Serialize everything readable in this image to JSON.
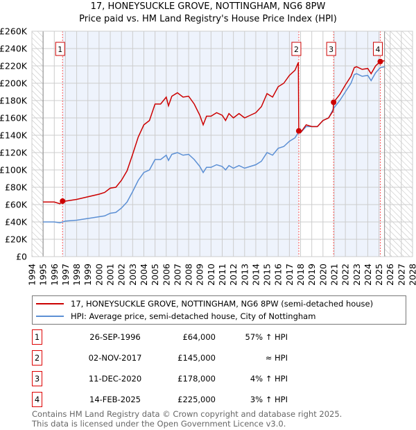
{
  "chart_data": {
    "type": "line",
    "title": "17, HONEYSUCKLE GROVE, NOTTINGHAM, NG6 8PW",
    "subtitle": "Price paid vs. HM Land Registry's House Price Index (HPI)",
    "xlim": [
      1994,
      2028
    ],
    "ylim": [
      0,
      260000
    ],
    "x_ticks": [
      "1994",
      "1995",
      "1996",
      "1997",
      "1998",
      "1999",
      "2000",
      "2001",
      "2002",
      "2003",
      "2004",
      "2005",
      "2006",
      "2007",
      "2008",
      "2009",
      "2010",
      "2011",
      "2012",
      "2013",
      "2014",
      "2015",
      "2016",
      "2017",
      "2018",
      "2019",
      "2020",
      "2021",
      "2022",
      "2023",
      "2024",
      "2025",
      "2026",
      "2027",
      "2028"
    ],
    "y_ticks": [
      {
        "v": 0,
        "label": "£0"
      },
      {
        "v": 20000,
        "label": "£20K"
      },
      {
        "v": 40000,
        "label": "£40K"
      },
      {
        "v": 60000,
        "label": "£60K"
      },
      {
        "v": 80000,
        "label": "£80K"
      },
      {
        "v": 100000,
        "label": "£100K"
      },
      {
        "v": 120000,
        "label": "£120K"
      },
      {
        "v": 140000,
        "label": "£140K"
      },
      {
        "v": 160000,
        "label": "£160K"
      },
      {
        "v": 180000,
        "label": "£180K"
      },
      {
        "v": 200000,
        "label": "£200K"
      },
      {
        "v": 220000,
        "label": "£220K"
      },
      {
        "v": 240000,
        "label": "£240K"
      },
      {
        "v": 260000,
        "label": "£260K"
      }
    ],
    "grid": true,
    "data_range": [
      1995,
      2025.5
    ],
    "series": [
      {
        "name": "17, HONEYSUCKLE GROVE, NOTTINGHAM, NG6 8PW (semi-detached house)",
        "color": "#cc0000",
        "points": [
          [
            1995,
            63
          ],
          [
            1996,
            63
          ],
          [
            1996.5,
            61
          ],
          [
            1996.74,
            64
          ],
          [
            1997,
            64
          ],
          [
            1998,
            66
          ],
          [
            1999,
            69
          ],
          [
            2000,
            72
          ],
          [
            2000.5,
            74
          ],
          [
            2001,
            79
          ],
          [
            2001.5,
            80
          ],
          [
            2002,
            88
          ],
          [
            2002.5,
            99
          ],
          [
            2003,
            118
          ],
          [
            2003.5,
            138
          ],
          [
            2004,
            152
          ],
          [
            2004.5,
            157
          ],
          [
            2005,
            176
          ],
          [
            2005.5,
            176
          ],
          [
            2006,
            184
          ],
          [
            2006.2,
            174
          ],
          [
            2006.5,
            185
          ],
          [
            2007,
            189
          ],
          [
            2007.5,
            184
          ],
          [
            2008,
            185
          ],
          [
            2008.5,
            176
          ],
          [
            2009,
            163
          ],
          [
            2009.3,
            152
          ],
          [
            2009.6,
            162
          ],
          [
            2010,
            162
          ],
          [
            2010.5,
            166
          ],
          [
            2011,
            163
          ],
          [
            2011.3,
            157
          ],
          [
            2011.6,
            165
          ],
          [
            2012,
            160
          ],
          [
            2012.5,
            165
          ],
          [
            2013,
            160
          ],
          [
            2013.5,
            163
          ],
          [
            2014,
            166
          ],
          [
            2014.5,
            173
          ],
          [
            2015,
            188
          ],
          [
            2015.5,
            184
          ],
          [
            2016,
            196
          ],
          [
            2016.5,
            200
          ],
          [
            2017,
            209
          ],
          [
            2017.5,
            215
          ],
          [
            2017.8,
            224
          ],
          [
            2017.84,
            145
          ],
          [
            2018,
            143
          ],
          [
            2018.5,
            152
          ],
          [
            2019,
            150
          ],
          [
            2019.5,
            150
          ],
          [
            2020,
            157
          ],
          [
            2020.5,
            160
          ],
          [
            2020.9,
            168
          ],
          [
            2020.95,
            178
          ],
          [
            2021.5,
            187
          ],
          [
            2022,
            198
          ],
          [
            2022.5,
            208
          ],
          [
            2022.8,
            218
          ],
          [
            2023,
            219
          ],
          [
            2023.5,
            216
          ],
          [
            2024,
            217
          ],
          [
            2024.3,
            211
          ],
          [
            2024.7,
            220
          ],
          [
            2025.12,
            225
          ],
          [
            2025.5,
            226
          ]
        ]
      },
      {
        "name": "HPI: Average price, semi-detached house, City of Nottingham",
        "color": "#5b8fd4",
        "points": [
          [
            1995,
            40
          ],
          [
            1996,
            40
          ],
          [
            1996.5,
            39
          ],
          [
            1997,
            41
          ],
          [
            1998,
            42
          ],
          [
            1999,
            44
          ],
          [
            2000,
            46
          ],
          [
            2000.5,
            47
          ],
          [
            2001,
            50
          ],
          [
            2001.5,
            51
          ],
          [
            2002,
            56
          ],
          [
            2002.5,
            63
          ],
          [
            2003,
            75
          ],
          [
            2003.5,
            88
          ],
          [
            2004,
            97
          ],
          [
            2004.5,
            100
          ],
          [
            2005,
            112
          ],
          [
            2005.5,
            112
          ],
          [
            2006,
            117
          ],
          [
            2006.2,
            111
          ],
          [
            2006.5,
            118
          ],
          [
            2007,
            120
          ],
          [
            2007.5,
            117
          ],
          [
            2008,
            118
          ],
          [
            2008.5,
            112
          ],
          [
            2009,
            104
          ],
          [
            2009.3,
            97
          ],
          [
            2009.6,
            103
          ],
          [
            2010,
            103
          ],
          [
            2010.5,
            106
          ],
          [
            2011,
            104
          ],
          [
            2011.3,
            100
          ],
          [
            2011.6,
            105
          ],
          [
            2012,
            102
          ],
          [
            2012.5,
            105
          ],
          [
            2013,
            102
          ],
          [
            2013.5,
            104
          ],
          [
            2014,
            106
          ],
          [
            2014.5,
            110
          ],
          [
            2015,
            120
          ],
          [
            2015.5,
            117
          ],
          [
            2016,
            125
          ],
          [
            2016.5,
            127
          ],
          [
            2017,
            133
          ],
          [
            2017.5,
            137
          ],
          [
            2017.84,
            144
          ],
          [
            2018,
            143
          ],
          [
            2018.5,
            150
          ],
          [
            2019,
            150
          ],
          [
            2019.5,
            150
          ],
          [
            2020,
            157
          ],
          [
            2020.5,
            160
          ],
          [
            2020.95,
            171
          ],
          [
            2021.5,
            180
          ],
          [
            2022,
            190
          ],
          [
            2022.5,
            200
          ],
          [
            2022.8,
            210
          ],
          [
            2023,
            211
          ],
          [
            2023.5,
            208
          ],
          [
            2024,
            209
          ],
          [
            2024.3,
            203
          ],
          [
            2024.7,
            212
          ],
          [
            2025.12,
            218
          ],
          [
            2025.5,
            219
          ]
        ]
      }
    ],
    "value_unit": "thousand GBP",
    "sales": [
      {
        "num": "1",
        "x": 1996.74,
        "y": 64,
        "date": "26-SEP-1996",
        "price": "£64,000",
        "hpi": "57% ↑ HPI"
      },
      {
        "num": "2",
        "x": 2017.84,
        "y": 145,
        "date": "02-NOV-2017",
        "price": "£145,000",
        "hpi": "≈ HPI"
      },
      {
        "num": "3",
        "x": 2020.95,
        "y": 178,
        "date": "11-DEC-2020",
        "price": "£178,000",
        "hpi": "4% ↑ HPI"
      },
      {
        "num": "4",
        "x": 2025.12,
        "y": 225,
        "date": "14-FEB-2025",
        "price": "£225,000",
        "hpi": "3% ↑ HPI"
      }
    ]
  },
  "footer": {
    "line1": "Contains HM Land Registry data © Crown copyright and database right 2025.",
    "line2": "This data is licensed under the Open Government Licence v3.0."
  }
}
